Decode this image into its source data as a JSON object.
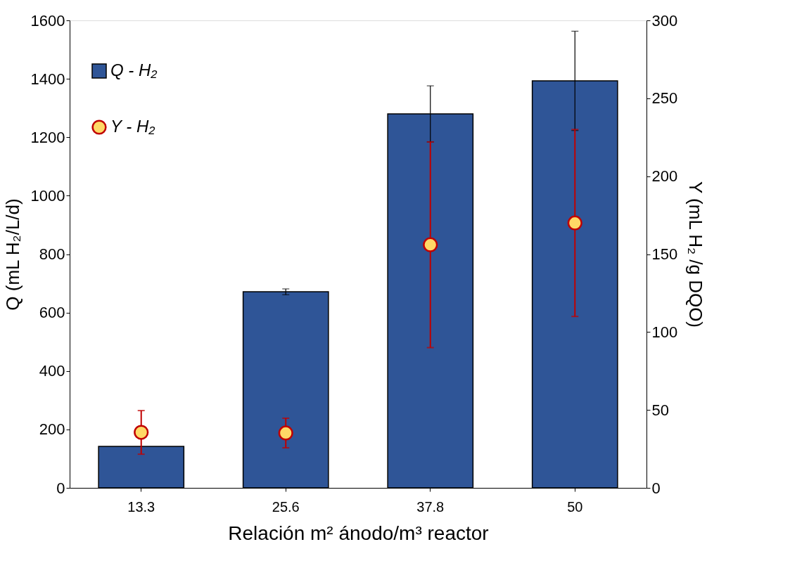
{
  "chart_data": {
    "type": "bar",
    "xlabel": "Relación m² ánodo/m³  reactor",
    "ylabel": "Q (mL  H₂/L/d)",
    "y2label": "Y (mL H₂ /g DQO)",
    "categories": [
      "13.3",
      "25.6",
      "37.8",
      "50"
    ],
    "series": [
      {
        "name": "Q - H₂",
        "color": "#2f5597",
        "values": [
          142,
          671,
          1280,
          1393
        ],
        "errors": [
          null,
          10,
          96,
          170
        ]
      },
      {
        "name": "Y - H₂",
        "type": "scatter",
        "axis": "y2",
        "color": "#ffd966",
        "values": [
          35.6,
          35.2,
          156,
          170
        ],
        "errors": [
          14,
          9.5,
          66,
          60
        ]
      }
    ],
    "ylim": [
      0,
      1600
    ],
    "yticks": [
      0,
      200,
      400,
      600,
      800,
      1000,
      1200,
      1400,
      1600
    ],
    "y2lim": [
      0,
      300
    ],
    "y2ticks": [
      0,
      50,
      100,
      150,
      200,
      250,
      300
    ],
    "legend": "top left",
    "grid": false,
    "marker": "circle"
  }
}
